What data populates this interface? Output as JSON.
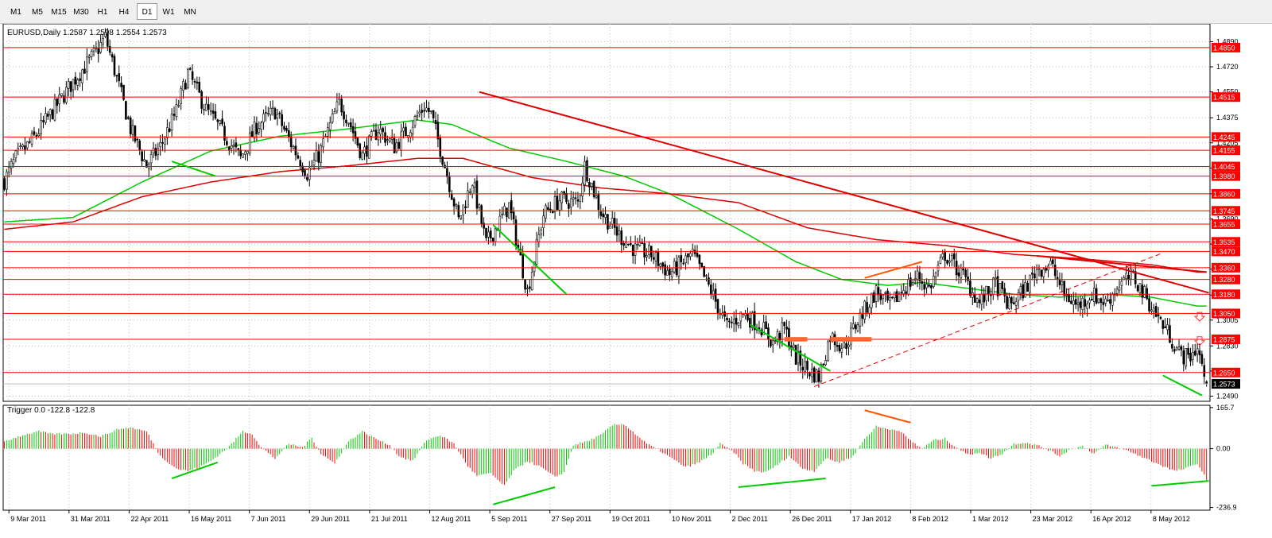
{
  "toolbar": {
    "timeframes": [
      "M1",
      "M5",
      "M15",
      "M30",
      "H1",
      "H4",
      "D1",
      "W1",
      "MN"
    ],
    "active": "D1"
  },
  "chart_data": [
    {
      "type": "candlestick",
      "title": "EURUSD,Daily  1.2587 1.2598 1.2554 1.2573",
      "symbol": "EURUSD",
      "timeframe": "Daily",
      "ohlc_last": {
        "open": 1.2587,
        "high": 1.2598,
        "low": 1.2554,
        "close": 1.2573
      },
      "current_price": "1.2573",
      "y_ticks": [
        "1.4890",
        "1.4720",
        "1.4550",
        "1.4375",
        "1.4205",
        "1.4035",
        "1.3860",
        "1.3690",
        "1.3520",
        "1.3350",
        "1.3175",
        "1.3005",
        "1.2830",
        "1.2660",
        "1.2490"
      ],
      "ylim": [
        1.2455,
        1.5011
      ],
      "x_ticks": [
        "9 Mar 2011",
        "31 Mar 2011",
        "22 Apr 2011",
        "16 May 2011",
        "7 Jun 2011",
        "29 Jun 2011",
        "21 Jul 2011",
        "12 Aug 2011",
        "5 Sep 2011",
        "27 Sep 2011",
        "19 Oct 2011",
        "10 Nov 2011",
        "2 Dec 2011",
        "26 Dec 2011",
        "17 Jan 2012",
        "8 Feb 2012",
        "1 Mar 2012",
        "23 Mar 2012",
        "16 Apr 2012",
        "8 May 2012"
      ],
      "horizontal_levels": [
        "1.4850",
        "1.4515",
        "1.4245",
        "1.4155",
        "1.4045",
        "1.3980",
        "1.3860",
        "1.3745",
        "1.3655",
        "1.3535",
        "1.3470",
        "1.3360",
        "1.3280",
        "1.3180",
        "1.3050",
        "1.2875",
        "1.2650"
      ],
      "anchors": [
        [
          0,
          1.395
        ],
        [
          5,
          1.41
        ],
        [
          12,
          1.422
        ],
        [
          22,
          1.444
        ],
        [
          30,
          1.462
        ],
        [
          40,
          1.482
        ],
        [
          44,
          1.492
        ],
        [
          48,
          1.47
        ],
        [
          55,
          1.43
        ],
        [
          62,
          1.405
        ],
        [
          68,
          1.418
        ],
        [
          75,
          1.442
        ],
        [
          80,
          1.468
        ],
        [
          88,
          1.443
        ],
        [
          95,
          1.428
        ],
        [
          103,
          1.41
        ],
        [
          110,
          1.432
        ],
        [
          118,
          1.442
        ],
        [
          125,
          1.42
        ],
        [
          132,
          1.4
        ],
        [
          137,
          1.412
        ],
        [
          146,
          1.448
        ],
        [
          150,
          1.436
        ],
        [
          156,
          1.412
        ],
        [
          163,
          1.43
        ],
        [
          170,
          1.418
        ],
        [
          177,
          1.432
        ],
        [
          183,
          1.445
        ],
        [
          186,
          1.44
        ],
        [
          192,
          1.405
        ],
        [
          198,
          1.368
        ],
        [
          204,
          1.395
        ],
        [
          210,
          1.352
        ],
        [
          220,
          1.378
        ],
        [
          228,
          1.32
        ],
        [
          235,
          1.372
        ],
        [
          242,
          1.382
        ],
        [
          250,
          1.38
        ],
        [
          253,
          1.405
        ],
        [
          256,
          1.392
        ],
        [
          260,
          1.374
        ],
        [
          268,
          1.358
        ],
        [
          275,
          1.348
        ],
        [
          282,
          1.345
        ],
        [
          290,
          1.332
        ],
        [
          300,
          1.345
        ],
        [
          308,
          1.32
        ],
        [
          315,
          1.296
        ],
        [
          322,
          1.305
        ],
        [
          330,
          1.296
        ],
        [
          335,
          1.285
        ],
        [
          340,
          1.295
        ],
        [
          345,
          1.275
        ],
        [
          350,
          1.267
        ],
        [
          355,
          1.262
        ],
        [
          360,
          1.29
        ],
        [
          366,
          1.282
        ],
        [
          372,
          1.3
        ],
        [
          380,
          1.32
        ],
        [
          386,
          1.31
        ],
        [
          392,
          1.322
        ],
        [
          398,
          1.33
        ],
        [
          403,
          1.322
        ],
        [
          410,
          1.345
        ],
        [
          418,
          1.33
        ],
        [
          425,
          1.312
        ],
        [
          432,
          1.325
        ],
        [
          438,
          1.31
        ],
        [
          445,
          1.322
        ],
        [
          450,
          1.335
        ],
        [
          456,
          1.338
        ],
        [
          462,
          1.318
        ],
        [
          468,
          1.31
        ],
        [
          474,
          1.318
        ],
        [
          480,
          1.312
        ],
        [
          486,
          1.325
        ],
        [
          492,
          1.33
        ],
        [
          498,
          1.315
        ],
        [
          503,
          1.302
        ],
        [
          508,
          1.29
        ],
        [
          512,
          1.278
        ],
        [
          516,
          1.275
        ],
        [
          520,
          1.282
        ],
        [
          524,
          1.257
        ]
      ],
      "moving_averages": [
        {
          "color": "#00cc00",
          "values": [
            [
              0,
              1.367
            ],
            [
              30,
              1.37
            ],
            [
              60,
              1.394
            ],
            [
              90,
              1.415
            ],
            [
              120,
              1.425
            ],
            [
              150,
              1.43
            ],
            [
              180,
              1.436
            ],
            [
              195,
              1.433
            ],
            [
              220,
              1.417
            ],
            [
              245,
              1.408
            ],
            [
              270,
              1.398
            ],
            [
              290,
              1.386
            ],
            [
              320,
              1.362
            ],
            [
              345,
              1.34
            ],
            [
              365,
              1.328
            ],
            [
              385,
              1.324
            ],
            [
              400,
              1.326
            ],
            [
              420,
              1.322
            ],
            [
              440,
              1.318
            ],
            [
              460,
              1.316
            ],
            [
              480,
              1.318
            ],
            [
              500,
              1.316
            ],
            [
              520,
              1.31
            ]
          ]
        },
        {
          "color": "#dd0000",
          "values": [
            [
              0,
              1.362
            ],
            [
              30,
              1.367
            ],
            [
              60,
              1.384
            ],
            [
              90,
              1.394
            ],
            [
              120,
              1.401
            ],
            [
              150,
              1.405
            ],
            [
              180,
              1.41
            ],
            [
              200,
              1.41
            ],
            [
              230,
              1.397
            ],
            [
              260,
              1.39
            ],
            [
              290,
              1.386
            ],
            [
              320,
              1.38
            ],
            [
              350,
              1.363
            ],
            [
              380,
              1.355
            ],
            [
              410,
              1.351
            ],
            [
              440,
              1.345
            ],
            [
              470,
              1.342
            ],
            [
              500,
              1.338
            ],
            [
              520,
              1.333
            ]
          ]
        }
      ],
      "trendlines": [
        {
          "color": "#dd0000",
          "style": "solid",
          "points": [
            [
              207,
              1.455
            ],
            [
              525,
              1.319
            ]
          ]
        },
        {
          "color": "#dd0000",
          "style": "solid",
          "points": [
            [
              450,
              1.344
            ],
            [
              524,
              1.333
            ]
          ]
        },
        {
          "color": "#dd0000",
          "style": "dashed",
          "points": [
            [
              353,
              1.2555
            ],
            [
              505,
              1.346
            ]
          ]
        },
        {
          "color": "#00cc00",
          "style": "solid",
          "points": [
            [
              73,
              1.408
            ],
            [
              92,
              1.398
            ]
          ]
        },
        {
          "color": "#00cc00",
          "style": "solid",
          "points": [
            [
              213,
              1.365
            ],
            [
              245,
              1.318
            ]
          ]
        },
        {
          "color": "#00cc00",
          "style": "solid",
          "points": [
            [
              325,
              1.2975
            ],
            [
              360,
              1.266
            ]
          ]
        },
        {
          "color": "#00cc00",
          "style": "solid",
          "points": [
            [
              505,
              1.263
            ],
            [
              522,
              1.2495
            ]
          ]
        },
        {
          "color": "#ff5500",
          "style": "solid",
          "points": [
            [
              375,
              1.329
            ],
            [
              400,
              1.34
            ]
          ]
        }
      ],
      "markers": [
        {
          "shape": "rect",
          "color": "#ff6633",
          "x": [
            340,
            350
          ],
          "y": [
            1.286,
            1.289
          ]
        },
        {
          "shape": "rect",
          "color": "#ff6633",
          "x": [
            360,
            378
          ],
          "y": [
            1.286,
            1.289
          ]
        },
        {
          "shape": "down-arrow",
          "color": "#ff3333",
          "x": 521,
          "y": 1.303
        },
        {
          "shape": "down-arrow",
          "color": "#ff3333",
          "x": 521,
          "y": 1.2865
        }
      ]
    },
    {
      "type": "histogram",
      "title": "Trigger 0.0 -122.8 -122.8",
      "y_ticks": [
        "165.7",
        "0.00",
        "-236.9"
      ],
      "ylim": [
        -248,
        175
      ],
      "anchors": [
        [
          0,
          30
        ],
        [
          8,
          55
        ],
        [
          15,
          70
        ],
        [
          20,
          60
        ],
        [
          28,
          60
        ],
        [
          35,
          65
        ],
        [
          42,
          50
        ],
        [
          50,
          80
        ],
        [
          55,
          85
        ],
        [
          62,
          70
        ],
        [
          68,
          -30
        ],
        [
          75,
          -80
        ],
        [
          80,
          -90
        ],
        [
          85,
          -75
        ],
        [
          90,
          -50
        ],
        [
          97,
          0
        ],
        [
          104,
          70
        ],
        [
          108,
          60
        ],
        [
          112,
          5
        ],
        [
          118,
          -40
        ],
        [
          124,
          20
        ],
        [
          130,
          5
        ],
        [
          134,
          45
        ],
        [
          138,
          -20
        ],
        [
          144,
          -60
        ],
        [
          150,
          30
        ],
        [
          156,
          70
        ],
        [
          162,
          40
        ],
        [
          168,
          15
        ],
        [
          172,
          -30
        ],
        [
          178,
          -50
        ],
        [
          184,
          35
        ],
        [
          190,
          55
        ],
        [
          196,
          20
        ],
        [
          202,
          -70
        ],
        [
          206,
          -110
        ],
        [
          212,
          -100
        ],
        [
          218,
          -150
        ],
        [
          222,
          -90
        ],
        [
          228,
          -50
        ],
        [
          234,
          -75
        ],
        [
          240,
          -115
        ],
        [
          244,
          -95
        ],
        [
          248,
          15
        ],
        [
          254,
          30
        ],
        [
          260,
          55
        ],
        [
          265,
          95
        ],
        [
          270,
          100
        ],
        [
          275,
          60
        ],
        [
          280,
          20
        ],
        [
          286,
          -10
        ],
        [
          291,
          -40
        ],
        [
          297,
          -75
        ],
        [
          303,
          -55
        ],
        [
          308,
          -25
        ],
        [
          312,
          20
        ],
        [
          318,
          -15
        ],
        [
          322,
          -60
        ],
        [
          327,
          -90
        ],
        [
          332,
          -95
        ],
        [
          337,
          -65
        ],
        [
          342,
          -30
        ],
        [
          348,
          -80
        ],
        [
          353,
          -90
        ],
        [
          358,
          -40
        ],
        [
          364,
          -55
        ],
        [
          370,
          -30
        ],
        [
          375,
          40
        ],
        [
          380,
          90
        ],
        [
          385,
          80
        ],
        [
          390,
          75
        ],
        [
          394,
          40
        ],
        [
          400,
          0
        ],
        [
          405,
          35
        ],
        [
          410,
          40
        ],
        [
          415,
          5
        ],
        [
          420,
          -25
        ],
        [
          425,
          -15
        ],
        [
          430,
          -40
        ],
        [
          435,
          -20
        ],
        [
          440,
          20
        ],
        [
          445,
          25
        ],
        [
          450,
          15
        ],
        [
          455,
          -5
        ],
        [
          460,
          -30
        ],
        [
          465,
          0
        ],
        [
          470,
          10
        ],
        [
          475,
          -20
        ],
        [
          480,
          15
        ],
        [
          485,
          5
        ],
        [
          490,
          -10
        ],
        [
          495,
          -30
        ],
        [
          500,
          -50
        ],
        [
          505,
          -70
        ],
        [
          510,
          -90
        ],
        [
          515,
          -80
        ],
        [
          520,
          -60
        ],
        [
          524,
          -123
        ]
      ],
      "trendlines": [
        {
          "color": "#00cc00",
          "style": "solid",
          "points": [
            [
              73,
              -120
            ],
            [
              93,
              -55
            ]
          ]
        },
        {
          "color": "#00cc00",
          "style": "solid",
          "points": [
            [
              213,
              -225
            ],
            [
              240,
              -155
            ]
          ]
        },
        {
          "color": "#00cc00",
          "style": "solid",
          "points": [
            [
              320,
              -155
            ],
            [
              358,
              -120
            ]
          ]
        },
        {
          "color": "#ff5500",
          "style": "solid",
          "points": [
            [
              375,
              155
            ],
            [
              395,
              105
            ]
          ]
        },
        {
          "color": "#00cc00",
          "style": "solid",
          "points": [
            [
              500,
              -150
            ],
            [
              525,
              -130
            ]
          ]
        }
      ]
    }
  ]
}
